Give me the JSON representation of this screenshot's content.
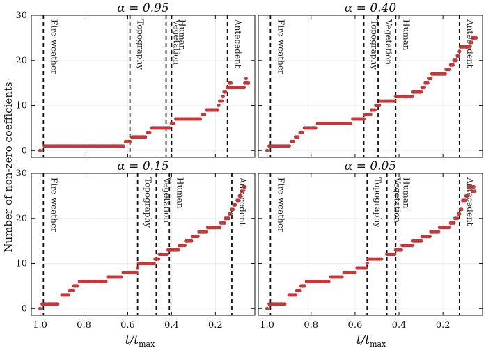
{
  "figure": {
    "ylabel": "Number of non-zero coefficients",
    "xlabel": "t/t_max"
  },
  "chart_data": [
    {
      "type": "scatter",
      "title": "α = 0.95",
      "xlim": [
        1.04,
        0.02
      ],
      "ylim": [
        -1.5,
        30
      ],
      "xticks": [
        1.0,
        0.8,
        0.6,
        0.4,
        0.2
      ],
      "xticklabels": [
        "1.0",
        "0.8",
        "0.6",
        "0.4",
        "0.2"
      ],
      "yticks": [
        0,
        10,
        20,
        30
      ],
      "yticklabels": [
        "0",
        "10",
        "20",
        "30"
      ],
      "color": "#c0393b",
      "steps": [
        [
          1.0,
          1.0,
          0
        ],
        [
          0.98,
          0.62,
          1
        ],
        [
          0.61,
          0.59,
          2
        ],
        [
          0.58,
          0.52,
          3
        ],
        [
          0.51,
          0.5,
          4
        ],
        [
          0.49,
          0.41,
          5
        ],
        [
          0.4,
          0.39,
          6
        ],
        [
          0.38,
          0.27,
          7
        ],
        [
          0.26,
          0.25,
          8
        ],
        [
          0.24,
          0.19,
          9
        ],
        [
          0.185,
          0.185,
          10
        ],
        [
          0.18,
          0.17,
          11
        ],
        [
          0.165,
          0.165,
          12
        ],
        [
          0.16,
          0.155,
          13
        ],
        [
          0.145,
          0.07,
          14
        ],
        [
          0.135,
          0.13,
          15
        ],
        [
          0.065,
          0.065,
          15
        ],
        [
          0.06,
          0.06,
          16
        ],
        [
          0.055,
          0.05,
          15
        ]
      ],
      "vlines": [
        {
          "x": 0.985,
          "label": "Fire weather"
        },
        {
          "x": 0.59,
          "label": "Topography"
        },
        {
          "x": 0.425,
          "label": "Vegetation"
        },
        {
          "x": 0.4,
          "label": "Human"
        },
        {
          "x": 0.145,
          "label": "Antecedent"
        }
      ]
    },
    {
      "type": "scatter",
      "title": "α = 0.40",
      "xlim": [
        1.04,
        0.02
      ],
      "ylim": [
        -1.5,
        30
      ],
      "xticks": [
        1.0,
        0.8,
        0.6,
        0.4,
        0.2
      ],
      "xticklabels": [
        "1.0",
        "0.8",
        "0.6",
        "0.4",
        "0.2"
      ],
      "yticks": [
        0,
        10,
        20,
        30
      ],
      "yticklabels": [
        "0",
        "10",
        "20",
        "30"
      ],
      "color": "#c0393b",
      "steps": [
        [
          1.0,
          1.0,
          0
        ],
        [
          0.99,
          0.98,
          1
        ],
        [
          0.975,
          0.9,
          1
        ],
        [
          0.89,
          0.88,
          2
        ],
        [
          0.87,
          0.86,
          3
        ],
        [
          0.85,
          0.84,
          4
        ],
        [
          0.83,
          0.78,
          5
        ],
        [
          0.77,
          0.62,
          6
        ],
        [
          0.61,
          0.56,
          7
        ],
        [
          0.555,
          0.53,
          8
        ],
        [
          0.525,
          0.51,
          9
        ],
        [
          0.505,
          0.49,
          10
        ],
        [
          0.485,
          0.42,
          11
        ],
        [
          0.415,
          0.34,
          12
        ],
        [
          0.335,
          0.3,
          13
        ],
        [
          0.295,
          0.285,
          14
        ],
        [
          0.28,
          0.27,
          15
        ],
        [
          0.265,
          0.255,
          16
        ],
        [
          0.25,
          0.19,
          17
        ],
        [
          0.185,
          0.17,
          18
        ],
        [
          0.165,
          0.155,
          19
        ],
        [
          0.15,
          0.14,
          20
        ],
        [
          0.135,
          0.13,
          21
        ],
        [
          0.125,
          0.125,
          22
        ],
        [
          0.12,
          0.08,
          23
        ],
        [
          0.075,
          0.07,
          24
        ],
        [
          0.065,
          0.05,
          25
        ]
      ],
      "vlines": [
        {
          "x": 0.985,
          "label": "Fire weather"
        },
        {
          "x": 0.56,
          "label": "Topography"
        },
        {
          "x": 0.495,
          "label": "Vegetation"
        },
        {
          "x": 0.415,
          "label": "Human"
        },
        {
          "x": 0.125,
          "label": "Antecedent"
        }
      ]
    },
    {
      "type": "scatter",
      "title": "α = 0.15",
      "xlim": [
        1.04,
        0.02
      ],
      "ylim": [
        -1.5,
        30
      ],
      "xticks": [
        1.0,
        0.8,
        0.6,
        0.4,
        0.2
      ],
      "xticklabels": [
        "1.0",
        "0.8",
        "0.6",
        "0.4",
        "0.2"
      ],
      "yticks": [
        0,
        10,
        20,
        30
      ],
      "yticklabels": [
        "0",
        "10",
        "20",
        "30"
      ],
      "color": "#c0393b",
      "steps": [
        [
          1.0,
          1.0,
          0
        ],
        [
          0.99,
          0.98,
          1
        ],
        [
          0.975,
          0.92,
          1
        ],
        [
          0.9,
          0.87,
          3
        ],
        [
          0.865,
          0.85,
          4
        ],
        [
          0.845,
          0.83,
          5
        ],
        [
          0.82,
          0.7,
          6
        ],
        [
          0.69,
          0.63,
          7
        ],
        [
          0.62,
          0.56,
          8
        ],
        [
          0.555,
          0.555,
          9
        ],
        [
          0.55,
          0.48,
          10
        ],
        [
          0.475,
          0.46,
          11
        ],
        [
          0.455,
          0.42,
          12
        ],
        [
          0.415,
          0.37,
          13
        ],
        [
          0.365,
          0.34,
          14
        ],
        [
          0.335,
          0.31,
          15
        ],
        [
          0.305,
          0.28,
          16
        ],
        [
          0.275,
          0.24,
          17
        ],
        [
          0.235,
          0.18,
          18
        ],
        [
          0.175,
          0.16,
          19
        ],
        [
          0.155,
          0.14,
          20
        ],
        [
          0.135,
          0.13,
          21
        ],
        [
          0.125,
          0.12,
          22
        ],
        [
          0.115,
          0.11,
          23
        ],
        [
          0.1,
          0.095,
          24
        ],
        [
          0.09,
          0.085,
          25
        ],
        [
          0.08,
          0.075,
          26
        ],
        [
          0.07,
          0.065,
          27
        ]
      ],
      "vlines": [
        {
          "x": 0.985,
          "label": "Fire weather"
        },
        {
          "x": 0.555,
          "label": "Topography"
        },
        {
          "x": 0.47,
          "label": "Vegetation"
        },
        {
          "x": 0.41,
          "label": "Human"
        },
        {
          "x": 0.125,
          "label": "Antecedent"
        }
      ]
    },
    {
      "type": "scatter",
      "title": "α = 0.05",
      "xlim": [
        1.04,
        0.02
      ],
      "ylim": [
        -1.5,
        30
      ],
      "xticks": [
        1.0,
        0.8,
        0.6,
        0.4,
        0.2
      ],
      "xticklabels": [
        "1.0",
        "0.8",
        "0.6",
        "0.4",
        "0.2"
      ],
      "yticks": [
        0,
        10,
        20,
        30
      ],
      "yticklabels": [
        "0",
        "10",
        "20",
        "30"
      ],
      "color": "#c0393b",
      "steps": [
        [
          1.0,
          1.0,
          0
        ],
        [
          0.99,
          0.98,
          1
        ],
        [
          0.975,
          0.92,
          1
        ],
        [
          0.9,
          0.87,
          3
        ],
        [
          0.865,
          0.85,
          4
        ],
        [
          0.845,
          0.83,
          5
        ],
        [
          0.82,
          0.72,
          6
        ],
        [
          0.71,
          0.66,
          7
        ],
        [
          0.65,
          0.6,
          8
        ],
        [
          0.59,
          0.55,
          9
        ],
        [
          0.545,
          0.545,
          10
        ],
        [
          0.54,
          0.48,
          11
        ],
        [
          0.455,
          0.42,
          12
        ],
        [
          0.415,
          0.39,
          13
        ],
        [
          0.385,
          0.34,
          14
        ],
        [
          0.335,
          0.3,
          15
        ],
        [
          0.295,
          0.26,
          16
        ],
        [
          0.255,
          0.22,
          17
        ],
        [
          0.215,
          0.17,
          18
        ],
        [
          0.165,
          0.15,
          19
        ],
        [
          0.145,
          0.135,
          20
        ],
        [
          0.13,
          0.125,
          21
        ],
        [
          0.12,
          0.115,
          22
        ],
        [
          0.11,
          0.1,
          24
        ],
        [
          0.095,
          0.09,
          25
        ],
        [
          0.085,
          0.06,
          27
        ],
        [
          0.065,
          0.055,
          26
        ]
      ],
      "vlines": [
        {
          "x": 0.985,
          "label": "Fire weather"
        },
        {
          "x": 0.545,
          "label": "Topography"
        },
        {
          "x": 0.455,
          "label": "Vegetation"
        },
        {
          "x": 0.415,
          "label": "Human"
        },
        {
          "x": 0.125,
          "label": "Antecedent"
        }
      ]
    }
  ]
}
